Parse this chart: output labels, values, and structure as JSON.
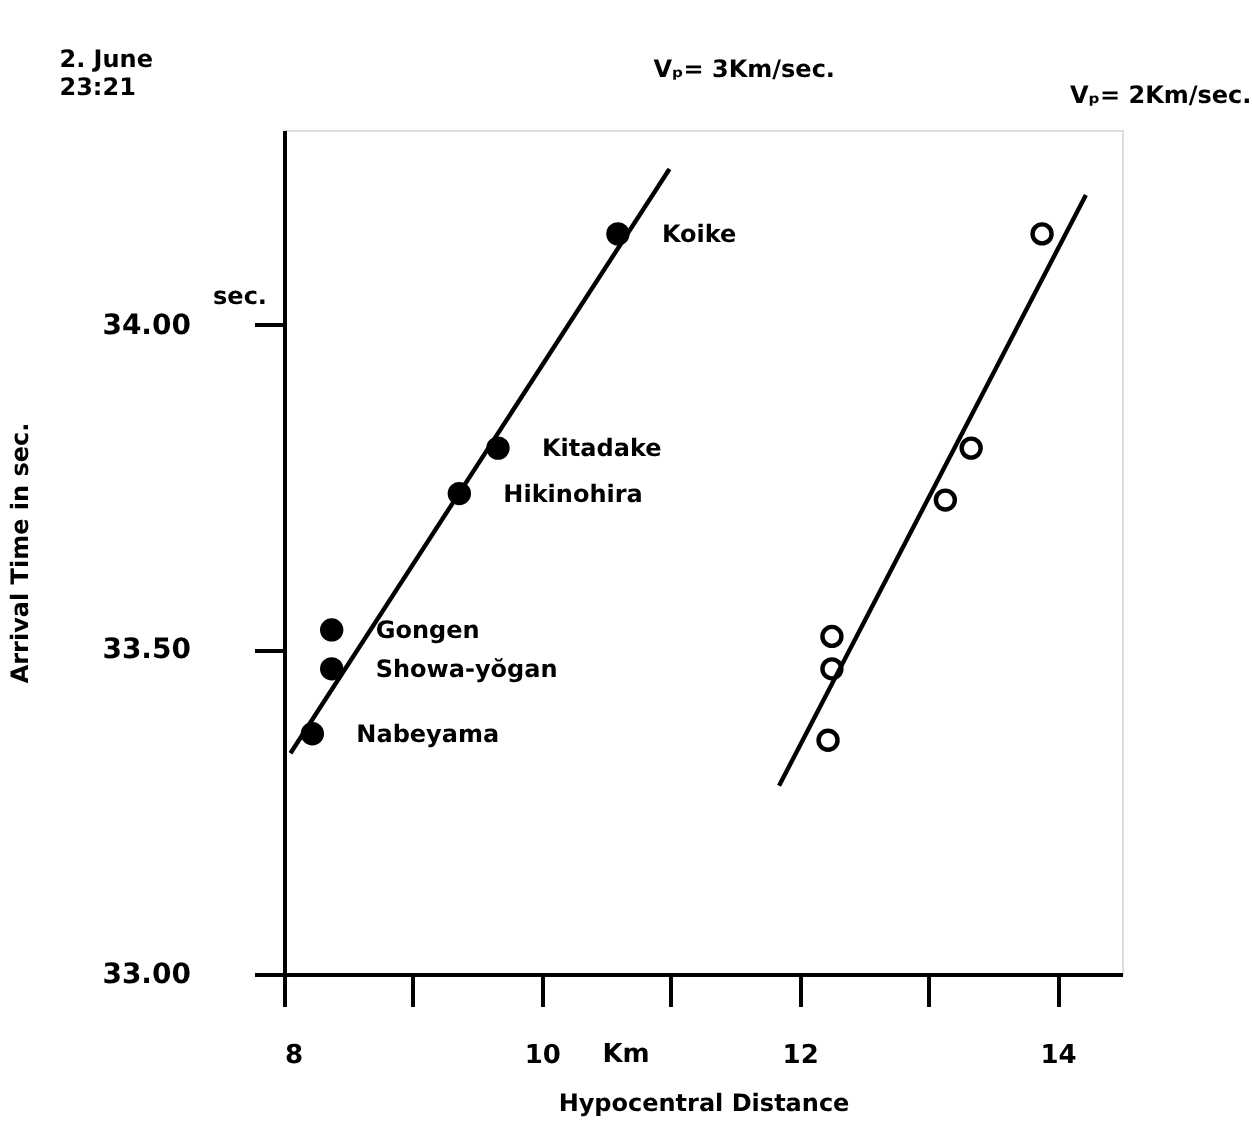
{
  "chart_data": {
    "type": "scatter",
    "title": [
      "2. June",
      "23:21"
    ],
    "xlabel": "Hypocentral   Distance",
    "ylabel": "Arrival   Time in sec.",
    "xlim": [
      8,
      14.5
    ],
    "ylim": [
      33,
      34.3
    ],
    "xticks": [
      8,
      {
        "value": 9,
        "label": null
      },
      10,
      {
        "value": 11,
        "label": null
      },
      12,
      {
        "value": 13,
        "label": null
      },
      14
    ],
    "yticks": [
      {
        "value": 33,
        "label": "33.00"
      },
      {
        "value": 33.5,
        "label": "33.50"
      },
      {
        "value": 34,
        "label": "34.00"
      }
    ],
    "marker": "circle",
    "series": [
      {
        "type": "scatter",
        "color": "#000000",
        "x": [
          10.59,
          9.66,
          9.36,
          8.37,
          8.37,
          8.22
        ],
        "values": [
          34.14,
          33.81,
          33.74,
          33.53,
          33.47,
          33.37
        ]
      },
      {
        "type": "line",
        "name": "Vₚ= 3Km/sec.",
        "color": "#000000",
        "marker": "none",
        "x": [
          8.05,
          10.99
        ],
        "values": [
          33.34,
          34.24
        ]
      },
      {
        "type": "scatter",
        "color": "#ffffff",
        "x": [
          13.88,
          13.33,
          13.13,
          12.25,
          12.25,
          12.22
        ],
        "values": [
          34.14,
          33.81,
          33.73,
          33.52,
          33.47,
          33.36
        ]
      },
      {
        "type": "line",
        "name": "Vₚ= 2Km/sec.",
        "color": "#000000",
        "marker": "none",
        "x": [
          11.84,
          14.22
        ],
        "values": [
          33.29,
          34.2
        ]
      }
    ],
    "annotations": [
      {
        "text": "Koike",
        "x": 10.59,
        "y": 34.14
      },
      {
        "text": "Kitadake",
        "x": 9.66,
        "y": 33.81
      },
      {
        "text": "Hikinohira",
        "x": 9.36,
        "y": 33.74
      },
      {
        "text": "Gongen",
        "x": 8.37,
        "y": 33.53
      },
      {
        "text": "Showa-yŏgan",
        "x": 8.37,
        "y": 33.47
      },
      {
        "text": "Nabeyama",
        "x": 8.22,
        "y": 33.37
      },
      "Km",
      "sec."
    ]
  }
}
